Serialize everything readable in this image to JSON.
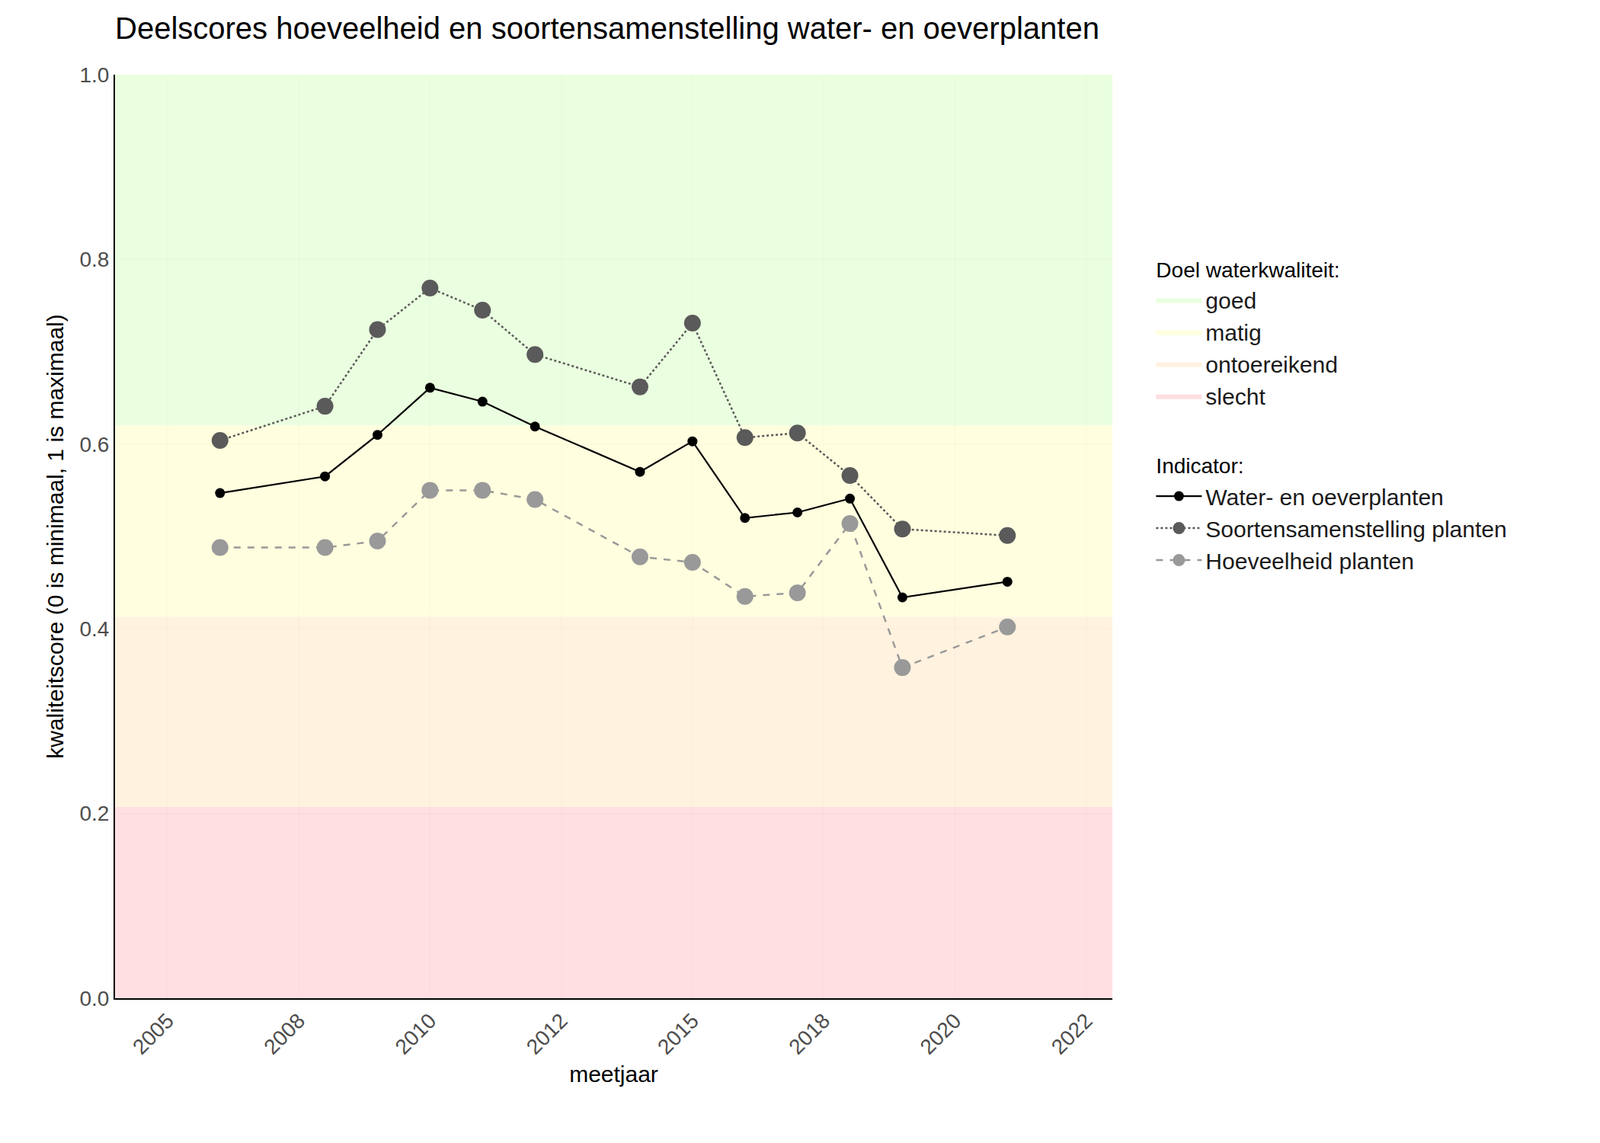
{
  "chart_data": {
    "type": "line",
    "title": "Deelscores hoeveelheid en soortensamenstelling water- en oeverplanten",
    "x_label": "meetjaar",
    "y_label": "kwaliteitscore (0 is minimaal, 1 is maximaal)",
    "x": [
      2006,
      2008,
      2009,
      2010,
      2011,
      2012,
      2014,
      2015,
      2016,
      2017,
      2018,
      2019,
      2021
    ],
    "series": [
      {
        "name": "Water- en oeverplanten",
        "color": "#000000",
        "marker": "circle",
        "line_style": "solid",
        "values": [
          0.547,
          0.565,
          0.61,
          0.661,
          0.646,
          0.619,
          0.57,
          0.603,
          0.52,
          0.526,
          0.541,
          0.434,
          0.451
        ]
      },
      {
        "name": "Soortensamenstelling planten",
        "color": "#5a5a5a",
        "marker": "circle",
        "line_style": "dotted",
        "values": [
          0.604,
          0.641,
          0.724,
          0.769,
          0.745,
          0.697,
          0.662,
          0.731,
          0.607,
          0.612,
          0.566,
          0.508,
          0.501
        ]
      },
      {
        "name": "Hoeveelheid planten",
        "color": "#999999",
        "marker": "circle",
        "line_style": "dashed",
        "values": [
          0.488,
          0.488,
          0.495,
          0.55,
          0.55,
          0.54,
          0.478,
          0.472,
          0.435,
          0.439,
          0.514,
          0.358,
          0.402
        ]
      }
    ],
    "series_title": "Indicator:",
    "bands_title": "Doel waterkwaliteit:",
    "bands": [
      {
        "name": "goed",
        "from": 0.62,
        "to": 1.0,
        "color": "#e6ffd9"
      },
      {
        "name": "matig",
        "from": 0.413,
        "to": 0.62,
        "color": "#ffffd9"
      },
      {
        "name": "ontoereikend",
        "from": 0.207,
        "to": 0.413,
        "color": "#fff0d9"
      },
      {
        "name": "slecht",
        "from": 0.0,
        "to": 0.207,
        "color": "#ffd9dc"
      }
    ],
    "xlim": [
      2004,
      2023
    ],
    "xticks": [
      {
        "value": 2005,
        "label": "2005"
      },
      {
        "value": 2007.5,
        "label": "2008"
      },
      {
        "value": 2010,
        "label": "2010"
      },
      {
        "value": 2012.5,
        "label": "2012"
      },
      {
        "value": 2015,
        "label": "2015"
      },
      {
        "value": 2017.5,
        "label": "2018"
      },
      {
        "value": 2020,
        "label": "2020"
      },
      {
        "value": 2022.5,
        "label": "2022"
      }
    ],
    "ylim": [
      0,
      1
    ],
    "yticks": [
      {
        "value": 0,
        "label": "0.0"
      },
      {
        "value": 0.2,
        "label": "0.2"
      },
      {
        "value": 0.4,
        "label": "0.4"
      },
      {
        "value": 0.6,
        "label": "0.6"
      },
      {
        "value": 0.8,
        "label": "0.8"
      },
      {
        "value": 1,
        "label": "1.0"
      }
    ],
    "grid": true
  }
}
